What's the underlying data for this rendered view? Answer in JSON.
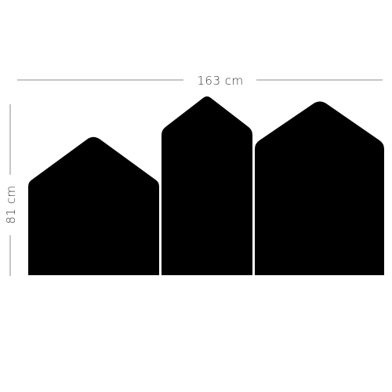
{
  "dimensions": {
    "width_label": "163 cm",
    "height_label": "81 cm"
  },
  "shapes": [
    {
      "name": "house-left"
    },
    {
      "name": "house-middle"
    },
    {
      "name": "house-right"
    }
  ],
  "colors": {
    "shape_fill": "#000000",
    "dimension_line": "#8c8c8c",
    "dimension_text": "#3a3a3a",
    "background": "#ffffff"
  }
}
